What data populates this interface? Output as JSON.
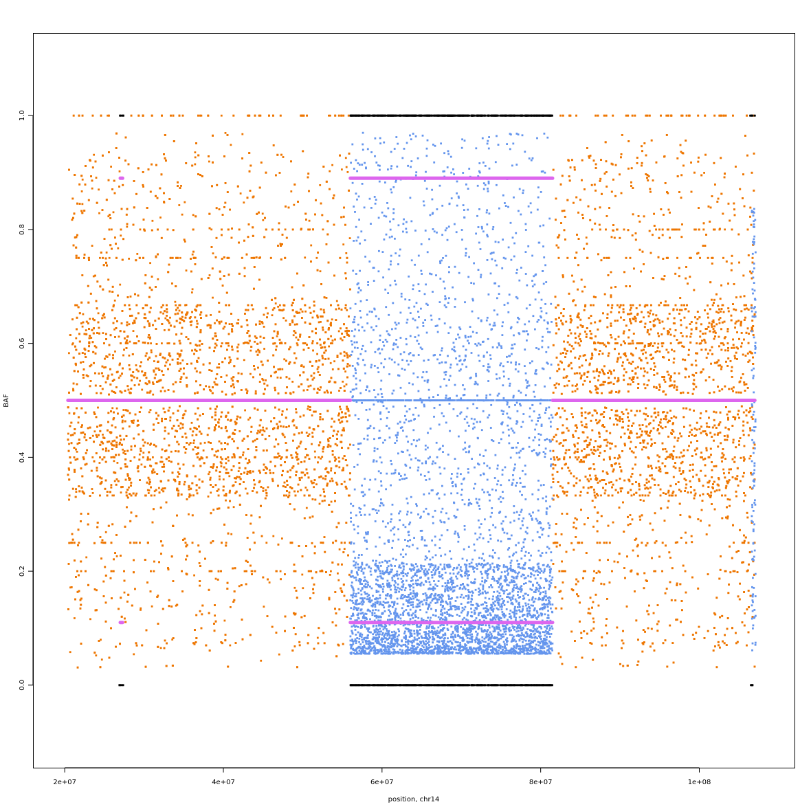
{
  "chart_data": {
    "type": "scatter",
    "title": "",
    "xlabel": "position, chr14",
    "ylabel": "BAF",
    "xlim": [
      16000000,
      112000000
    ],
    "ylim": [
      -0.145,
      1.145
    ],
    "xticks": [
      {
        "value": 20000000,
        "label": "2e+07"
      },
      {
        "value": 40000000,
        "label": "4e+07"
      },
      {
        "value": 60000000,
        "label": "6e+07"
      },
      {
        "value": 80000000,
        "label": "8e+07"
      },
      {
        "value": 100000000,
        "label": "1e+08"
      }
    ],
    "yticks": [
      {
        "value": 0.0,
        "label": "0.0"
      },
      {
        "value": 0.2,
        "label": "0.2"
      },
      {
        "value": 0.4,
        "label": "0.4"
      },
      {
        "value": 0.6,
        "label": "0.6"
      },
      {
        "value": 0.8,
        "label": "0.8"
      },
      {
        "value": 1.0,
        "label": "1.0"
      }
    ],
    "grid": false,
    "legend": "none",
    "colors": {
      "heterozygous_balanced": "#ee7600",
      "heterozygous_imbalanced": "#6495ed",
      "homozygous": "#000000",
      "segment_mean": "#dd66ee"
    },
    "regions": [
      {
        "x_start": 20400000,
        "x_end": 56000000,
        "state": "balanced"
      },
      {
        "x_start": 56000000,
        "x_end": 81500000,
        "state": "imbalanced"
      },
      {
        "x_start": 81500000,
        "x_end": 107000000,
        "state": "balanced"
      }
    ],
    "segments": [
      {
        "x_start": 20400000,
        "x_end": 56000000,
        "y": 0.5
      },
      {
        "x_start": 56000000,
        "x_end": 81500000,
        "y": 0.89
      },
      {
        "x_start": 56000000,
        "x_end": 81500000,
        "y": 0.11
      },
      {
        "x_start": 81500000,
        "x_end": 107000000,
        "y": 0.5
      },
      {
        "x_start": 27000000,
        "x_end": 27300000,
        "y": 0.89
      },
      {
        "x_start": 27000000,
        "x_end": 27300000,
        "y": 0.11
      }
    ],
    "homozygous_bands": [
      {
        "x_start": 56000000,
        "x_end": 81500000,
        "y": 1.0
      },
      {
        "x_start": 56000000,
        "x_end": 81500000,
        "y": 0.0
      },
      {
        "x_start": 26900000,
        "x_end": 27400000,
        "y": 1.0
      },
      {
        "x_start": 26900000,
        "x_end": 27400000,
        "y": 0.0
      },
      {
        "x_start": 106300000,
        "x_end": 107000000,
        "y": 1.0
      },
      {
        "x_start": 106300000,
        "x_end": 107000000,
        "y": 0.0
      }
    ],
    "balanced_density_gaps": [
      {
        "x_start": 37400000,
        "x_end": 38100000
      },
      {
        "x_start": 45600000,
        "x_end": 46100000
      }
    ]
  }
}
